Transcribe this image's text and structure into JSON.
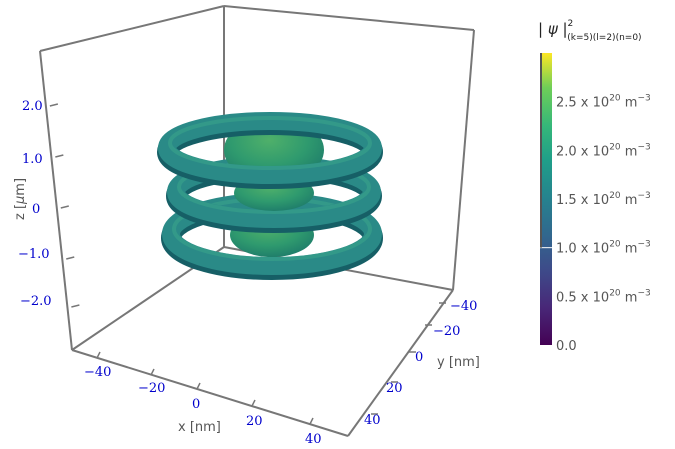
{
  "chart_data": {
    "type": "isosurface-3d",
    "title": {
      "prefix": "| ψ |",
      "superscript": "2",
      "subscript": "(k=5)(l=2)(n=0)"
    },
    "axes": {
      "x": {
        "label": "x [nm]",
        "ticks": [
          "−40",
          "−20",
          "0",
          "20",
          "40"
        ],
        "tick_values": [
          -40,
          -20,
          0,
          20,
          40
        ],
        "range": [
          -50,
          50
        ]
      },
      "y": {
        "label": "y [nm]",
        "ticks": [
          "−40",
          "−20",
          "0",
          "20",
          "40"
        ],
        "tick_values": [
          -40,
          -20,
          0,
          20,
          40
        ],
        "range": [
          -50,
          50
        ]
      },
      "z": {
        "label_prefix": "z [",
        "label_mu": "μ",
        "label_suffix": "m]",
        "ticks": [
          "2.0",
          "1.0",
          "0",
          "−1.0",
          "−2.0"
        ],
        "tick_values": [
          2.0,
          1.0,
          0,
          -1.0,
          -2.0
        ],
        "range": [
          -3,
          3
        ]
      }
    },
    "colorbar": {
      "colormap": "viridis",
      "range": [
        0,
        3.0
      ],
      "ticks": [
        {
          "value": 0.0,
          "text": "0.0",
          "has_exp": false
        },
        {
          "value": 0.5,
          "text": "0.5 x  10",
          "has_exp": true
        },
        {
          "value": 1.0,
          "text": "1.0 x  10",
          "has_exp": true
        },
        {
          "value": 1.5,
          "text": "1.5 x  10",
          "has_exp": true
        },
        {
          "value": 2.0,
          "text": "2.0 x  10",
          "has_exp": true
        },
        {
          "value": 2.5,
          "text": "2.5 x  10",
          "has_exp": true
        }
      ],
      "exponent": "20",
      "unit": " m",
      "unit_exp": "−3",
      "isosurface_level": 1.0
    },
    "surface_color": "#2a8a87",
    "frame_color": "#777777"
  }
}
